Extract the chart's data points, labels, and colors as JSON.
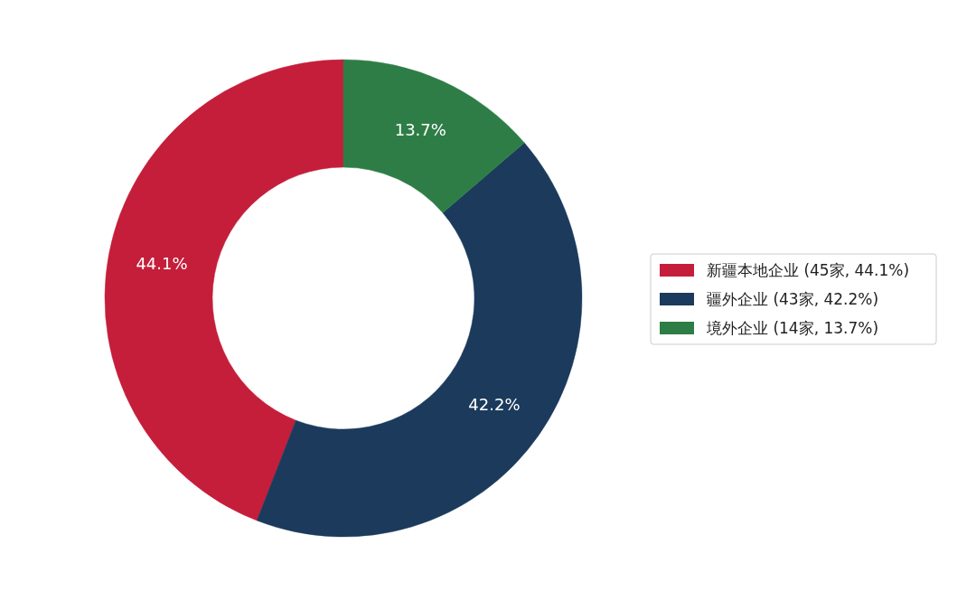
{
  "chart_data": {
    "type": "donut",
    "categories": [
      "新疆本地企业 (45家, 44.1%)",
      "疆外企业 (43家, 42.2%)",
      "境外企业 (14家, 13.7%)"
    ],
    "values": [
      44.1,
      42.2,
      13.7
    ],
    "value_labels": [
      "44.1%",
      "42.2%",
      "13.7%"
    ],
    "colors": [
      "#c41e3a",
      "#1b3a5c",
      "#2e7d46"
    ],
    "legend": "right"
  }
}
